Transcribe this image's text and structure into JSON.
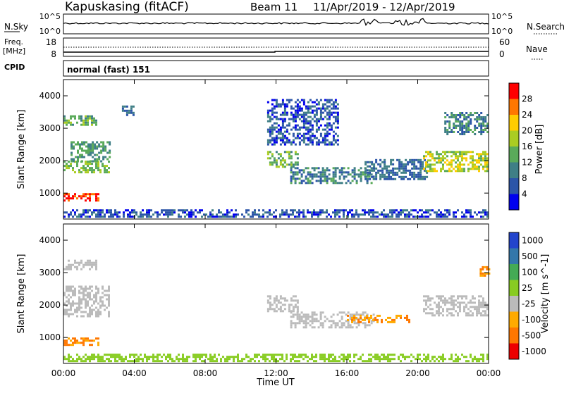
{
  "header": {
    "station": "Kapuskasing (fitACF)",
    "beam": "Beam 11",
    "dates": "11/Apr/2019 - 12/Apr/2019"
  },
  "top_panels": {
    "nsky_label": "N.Sky",
    "nsky_ticks": [
      "10^5",
      "10^0"
    ],
    "nsearch_label": "N.Search",
    "nsearch_ticks": [
      "10^5",
      "10^0"
    ],
    "freq_label": "Freq.",
    "freq_unit": "[MHz]",
    "freq_ticks": [
      "18",
      "8"
    ],
    "nave_label": "Nave",
    "nave_ticks": [
      "60",
      "0"
    ],
    "cpid_label": "CPID",
    "cpid_text": "normal (fast) 151"
  },
  "colors": {
    "power": [
      "#0000ee",
      "#2c55a8",
      "#3f7f86",
      "#5aaa5a",
      "#aacc22",
      "#ffcc00",
      "#ff7700",
      "#ff0000"
    ],
    "velocity": [
      "#ee0000",
      "#ff7700",
      "#ffaa00",
      "#bbbbbb",
      "#88cc22",
      "#44aa55",
      "#3377aa",
      "#2244cc"
    ]
  },
  "chart_data": [
    {
      "type": "heatmap",
      "name": "power-panel",
      "ylabel": "Slant Range [km]",
      "colorbar_label": "Power [dB]",
      "colorbar_ticks": [
        "4",
        "8",
        "12",
        "16",
        "20",
        "24",
        "28"
      ],
      "y_ticks": [
        "1000",
        "2000",
        "3000",
        "4000"
      ],
      "ylim": [
        200,
        4500
      ],
      "xlim_hours": [
        0,
        24
      ],
      "regions": [
        {
          "t": [
            0.0,
            2.0
          ],
          "range": [
            800,
            1000
          ],
          "v": 28
        },
        {
          "t": [
            0.0,
            2.6
          ],
          "range": [
            1650,
            2000
          ],
          "v": 16
        },
        {
          "t": [
            0.4,
            2.6
          ],
          "range": [
            2000,
            2600
          ],
          "v": 12
        },
        {
          "t": [
            0.0,
            1.8
          ],
          "range": [
            3100,
            3400
          ],
          "v": 14
        },
        {
          "t": [
            3.3,
            3.9
          ],
          "range": [
            3400,
            3700
          ],
          "v": 8
        },
        {
          "t": [
            11.5,
            13.2
          ],
          "range": [
            1800,
            2300
          ],
          "v": 14
        },
        {
          "t": [
            12.8,
            17.5
          ],
          "range": [
            1300,
            1800
          ],
          "v": 10
        },
        {
          "t": [
            17.0,
            20.5
          ],
          "range": [
            1450,
            2050
          ],
          "v": 8
        },
        {
          "t": [
            20.3,
            24.0
          ],
          "range": [
            1650,
            2300
          ],
          "v": 18
        },
        {
          "t": [
            0.0,
            24.0
          ],
          "range": [
            250,
            500
          ],
          "v": 6
        },
        {
          "t": [
            11.5,
            15.5
          ],
          "range": [
            2500,
            3900
          ],
          "v": 6
        },
        {
          "t": [
            21.5,
            24.0
          ],
          "range": [
            2800,
            3500
          ],
          "v": 10
        }
      ]
    },
    {
      "type": "heatmap",
      "name": "velocity-panel",
      "ylabel": "Slant Range [km]",
      "colorbar_label": "Velocity [m s^-1]",
      "colorbar_ticks": [
        "1000",
        "500",
        "100",
        "25",
        "-25",
        "-100",
        "-500",
        "-1000"
      ],
      "y_ticks": [
        "1000",
        "2000",
        "3000",
        "4000"
      ],
      "ylim": [
        200,
        4500
      ],
      "xlim_hours": [
        0,
        24
      ],
      "regions": [
        {
          "t": [
            0.0,
            2.0
          ],
          "range": [
            800,
            1000
          ],
          "v": -100
        },
        {
          "t": [
            0.0,
            2.6
          ],
          "range": [
            1650,
            2600
          ],
          "v": 0
        },
        {
          "t": [
            0.0,
            1.8
          ],
          "range": [
            3100,
            3400
          ],
          "v": 0
        },
        {
          "t": [
            11.5,
            13.2
          ],
          "range": [
            1800,
            2300
          ],
          "v": 0
        },
        {
          "t": [
            12.8,
            17.5
          ],
          "range": [
            1300,
            1800
          ],
          "v": 0
        },
        {
          "t": [
            20.3,
            24.0
          ],
          "range": [
            1650,
            2300
          ],
          "v": 0
        },
        {
          "t": [
            0.0,
            24.0
          ],
          "range": [
            250,
            500
          ],
          "v": 50
        },
        {
          "t": [
            16.0,
            19.5
          ],
          "range": [
            1450,
            1700
          ],
          "v": -100
        },
        {
          "t": [
            23.5,
            24.0
          ],
          "range": [
            2900,
            3200
          ],
          "v": -100
        }
      ]
    }
  ],
  "x_axis": {
    "label": "Time UT",
    "ticks": [
      "00:00",
      "04:00",
      "08:00",
      "12:00",
      "16:00",
      "20:00",
      "00:00"
    ]
  }
}
